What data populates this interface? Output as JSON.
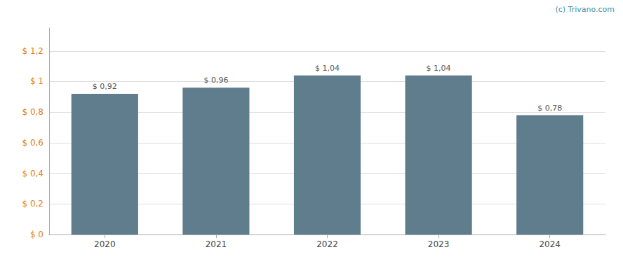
{
  "chart_data": {
    "type": "bar",
    "categories": [
      "2020",
      "2021",
      "2022",
      "2023",
      "2024"
    ],
    "values": [
      0.92,
      0.96,
      1.04,
      1.04,
      0.78
    ],
    "value_labels": [
      "$ 0,92",
      "$ 0,96",
      "$ 1,04",
      "$ 1,04",
      "$ 0,78"
    ],
    "data_labels": true,
    "color": "#5f7d8c",
    "ylim": [
      0,
      1.35
    ],
    "yticks": [
      {
        "value": 0,
        "label": "$ 0"
      },
      {
        "value": 0.2,
        "label": "$ 0,2"
      },
      {
        "value": 0.4,
        "label": "$ 0,4"
      },
      {
        "value": 0.6,
        "label": "$ 0,6"
      },
      {
        "value": 0.8,
        "label": "$ 0,8"
      },
      {
        "value": 1.0,
        "label": "$ 1"
      },
      {
        "value": 1.2,
        "label": "$ 1,2"
      }
    ],
    "grid": true,
    "annotations": [
      "(c) Trivano.com"
    ]
  }
}
